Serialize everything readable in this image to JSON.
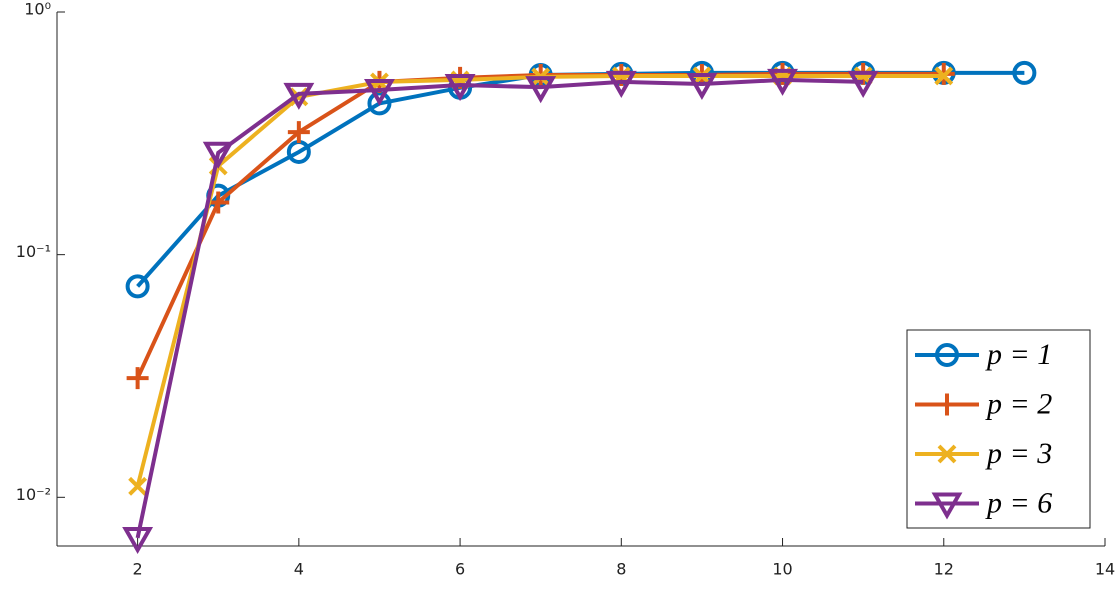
{
  "chart_data": {
    "type": "line",
    "log_y": true,
    "legend": "lower right",
    "grid": false,
    "xlim": [
      1,
      14
    ],
    "xticks": [
      2,
      4,
      6,
      8,
      10,
      12,
      14
    ],
    "ylim": [
      0.0063,
      1
    ],
    "yticks": [
      {
        "value": 0.01,
        "label": "10⁻²"
      },
      {
        "value": 0.1,
        "label": "10⁻¹"
      },
      {
        "value": 1,
        "label": "10⁰"
      }
    ],
    "series": [
      {
        "name": "p = 1",
        "color": "#0072BD",
        "marker": "circle",
        "x": [
          2,
          3,
          4,
          5,
          6,
          7,
          8,
          9,
          10,
          11,
          12,
          13
        ],
        "values": [
          0.074,
          0.175,
          0.265,
          0.42,
          0.487,
          0.55,
          0.556,
          0.561,
          0.561,
          0.561,
          0.561,
          0.561
        ]
      },
      {
        "name": "p = 2",
        "color": "#D95319",
        "marker": "plus",
        "x": [
          2,
          3,
          4,
          5,
          6,
          7,
          8,
          9,
          10,
          11,
          12
        ],
        "values": [
          0.031,
          0.164,
          0.32,
          0.515,
          0.535,
          0.55,
          0.55,
          0.55,
          0.556,
          0.556,
          0.556
        ]
      },
      {
        "name": "p = 3",
        "color": "#EDB120",
        "marker": "x",
        "x": [
          2,
          3,
          4,
          5,
          6,
          7,
          8,
          9,
          10,
          11,
          12
        ],
        "values": [
          0.0111,
          0.232,
          0.447,
          0.515,
          0.525,
          0.54,
          0.545,
          0.545,
          0.545,
          0.545,
          0.545
        ]
      },
      {
        "name": "p = 6",
        "color": "#7E2F8E",
        "marker": "triangle-down",
        "x": [
          2,
          3,
          4,
          5,
          6,
          7,
          8,
          9,
          10,
          11
        ],
        "values": [
          0.0068,
          0.263,
          0.46,
          0.477,
          0.5,
          0.49,
          0.515,
          0.505,
          0.525,
          0.515
        ]
      }
    ]
  }
}
